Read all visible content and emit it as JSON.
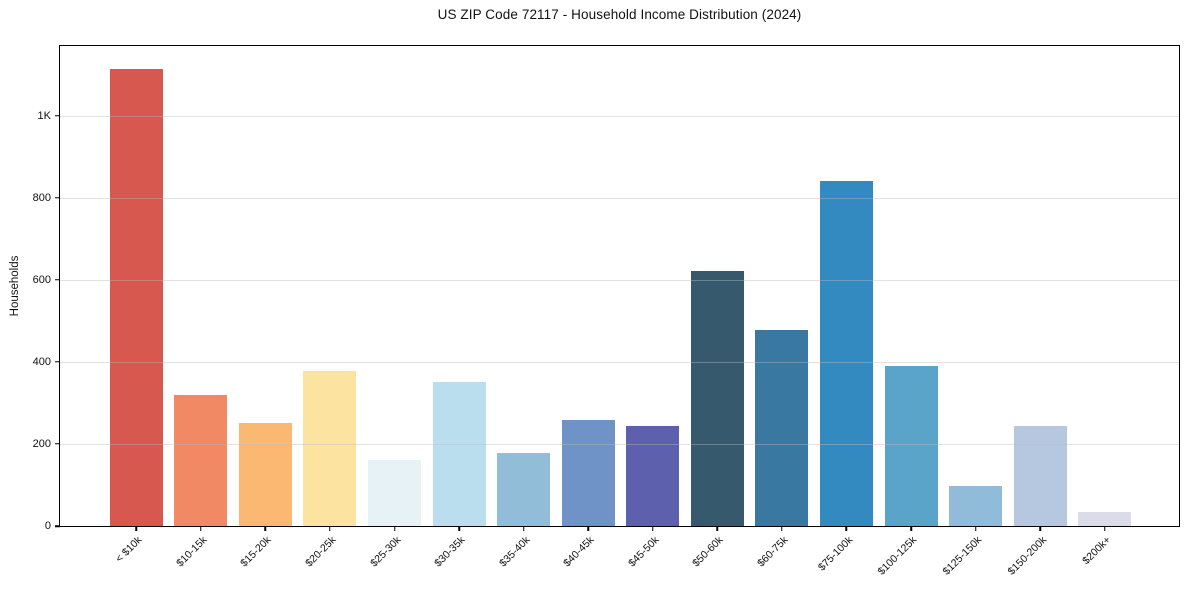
{
  "page": {
    "background_color": "#ffffff"
  },
  "chart_data": {
    "type": "bar",
    "title": "US ZIP Code 72117 - Household Income Distribution (2024)",
    "xlabel": "",
    "ylabel": "Households",
    "categories": [
      "< $10k",
      "$10-15k",
      "$15-20k",
      "$20-25k",
      "$25-30k",
      "$30-35k",
      "$35-40k",
      "$40-45k",
      "$45-50k",
      "$50-60k",
      "$60-75k",
      "$75-100k",
      "$100-125k",
      "$125-150k",
      "$150-200k",
      "$200k+"
    ],
    "values": [
      1115,
      320,
      250,
      378,
      162,
      350,
      178,
      258,
      243,
      622,
      477,
      840,
      390,
      97,
      243,
      33
    ],
    "bar_colors": [
      "#d7584f",
      "#f18a64",
      "#fab873",
      "#fde3a0",
      "#e6f2f6",
      "#badeee",
      "#92bdd8",
      "#7093c7",
      "#5d60ac",
      "#36596e",
      "#3979a1",
      "#338ac0",
      "#5aa4c9",
      "#90bcda",
      "#b6c8e0",
      "#dadde9"
    ],
    "ylim": [
      0,
      1170
    ],
    "yticks": [
      {
        "value": 0,
        "label": "0"
      },
      {
        "value": 200,
        "label": "200"
      },
      {
        "value": 400,
        "label": "400"
      },
      {
        "value": 600,
        "label": "600"
      },
      {
        "value": 800,
        "label": "800"
      },
      {
        "value": 1000,
        "label": "1K"
      }
    ],
    "grid": "horizontal",
    "grid_color": "#e6e6e6",
    "legend_position": "none",
    "x_tick_rotation_deg": 45,
    "frame_color": "#000000"
  }
}
